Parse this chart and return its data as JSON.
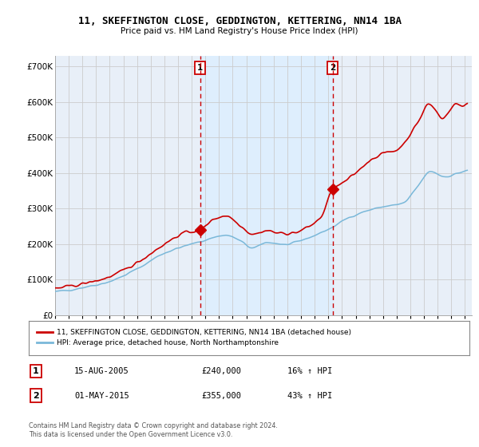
{
  "title": "11, SKEFFINGTON CLOSE, GEDDINGTON, KETTERING, NN14 1BA",
  "subtitle": "Price paid vs. HM Land Registry's House Price Index (HPI)",
  "sale1_date": "15-AUG-2005",
  "sale1_price": 240000,
  "sale1_label": "16% ↑ HPI",
  "sale2_date": "01-MAY-2015",
  "sale2_price": 355000,
  "sale2_label": "43% ↑ HPI",
  "legend_property": "11, SKEFFINGTON CLOSE, GEDDINGTON, KETTERING, NN14 1BA (detached house)",
  "legend_hpi": "HPI: Average price, detached house, North Northamptonshire",
  "footnote": "Contains HM Land Registry data © Crown copyright and database right 2024.\nThis data is licensed under the Open Government Licence v3.0.",
  "ylabel_ticks": [
    "£0",
    "£100K",
    "£200K",
    "£300K",
    "£400K",
    "£500K",
    "£600K",
    "£700K"
  ],
  "ytick_values": [
    0,
    100000,
    200000,
    300000,
    400000,
    500000,
    600000,
    700000
  ],
  "ylim": [
    0,
    730000
  ],
  "xlim_start": 1995.0,
  "xlim_end": 2025.5,
  "sale1_x": 2005.62,
  "sale2_x": 2015.33,
  "property_color": "#cc0000",
  "hpi_color": "#7ab8d9",
  "vline_color": "#cc0000",
  "shade_color": "#ddeeff",
  "background_color": "#e8eff8",
  "grid_color": "#cccccc",
  "annotation_box_color": "#cc0000"
}
